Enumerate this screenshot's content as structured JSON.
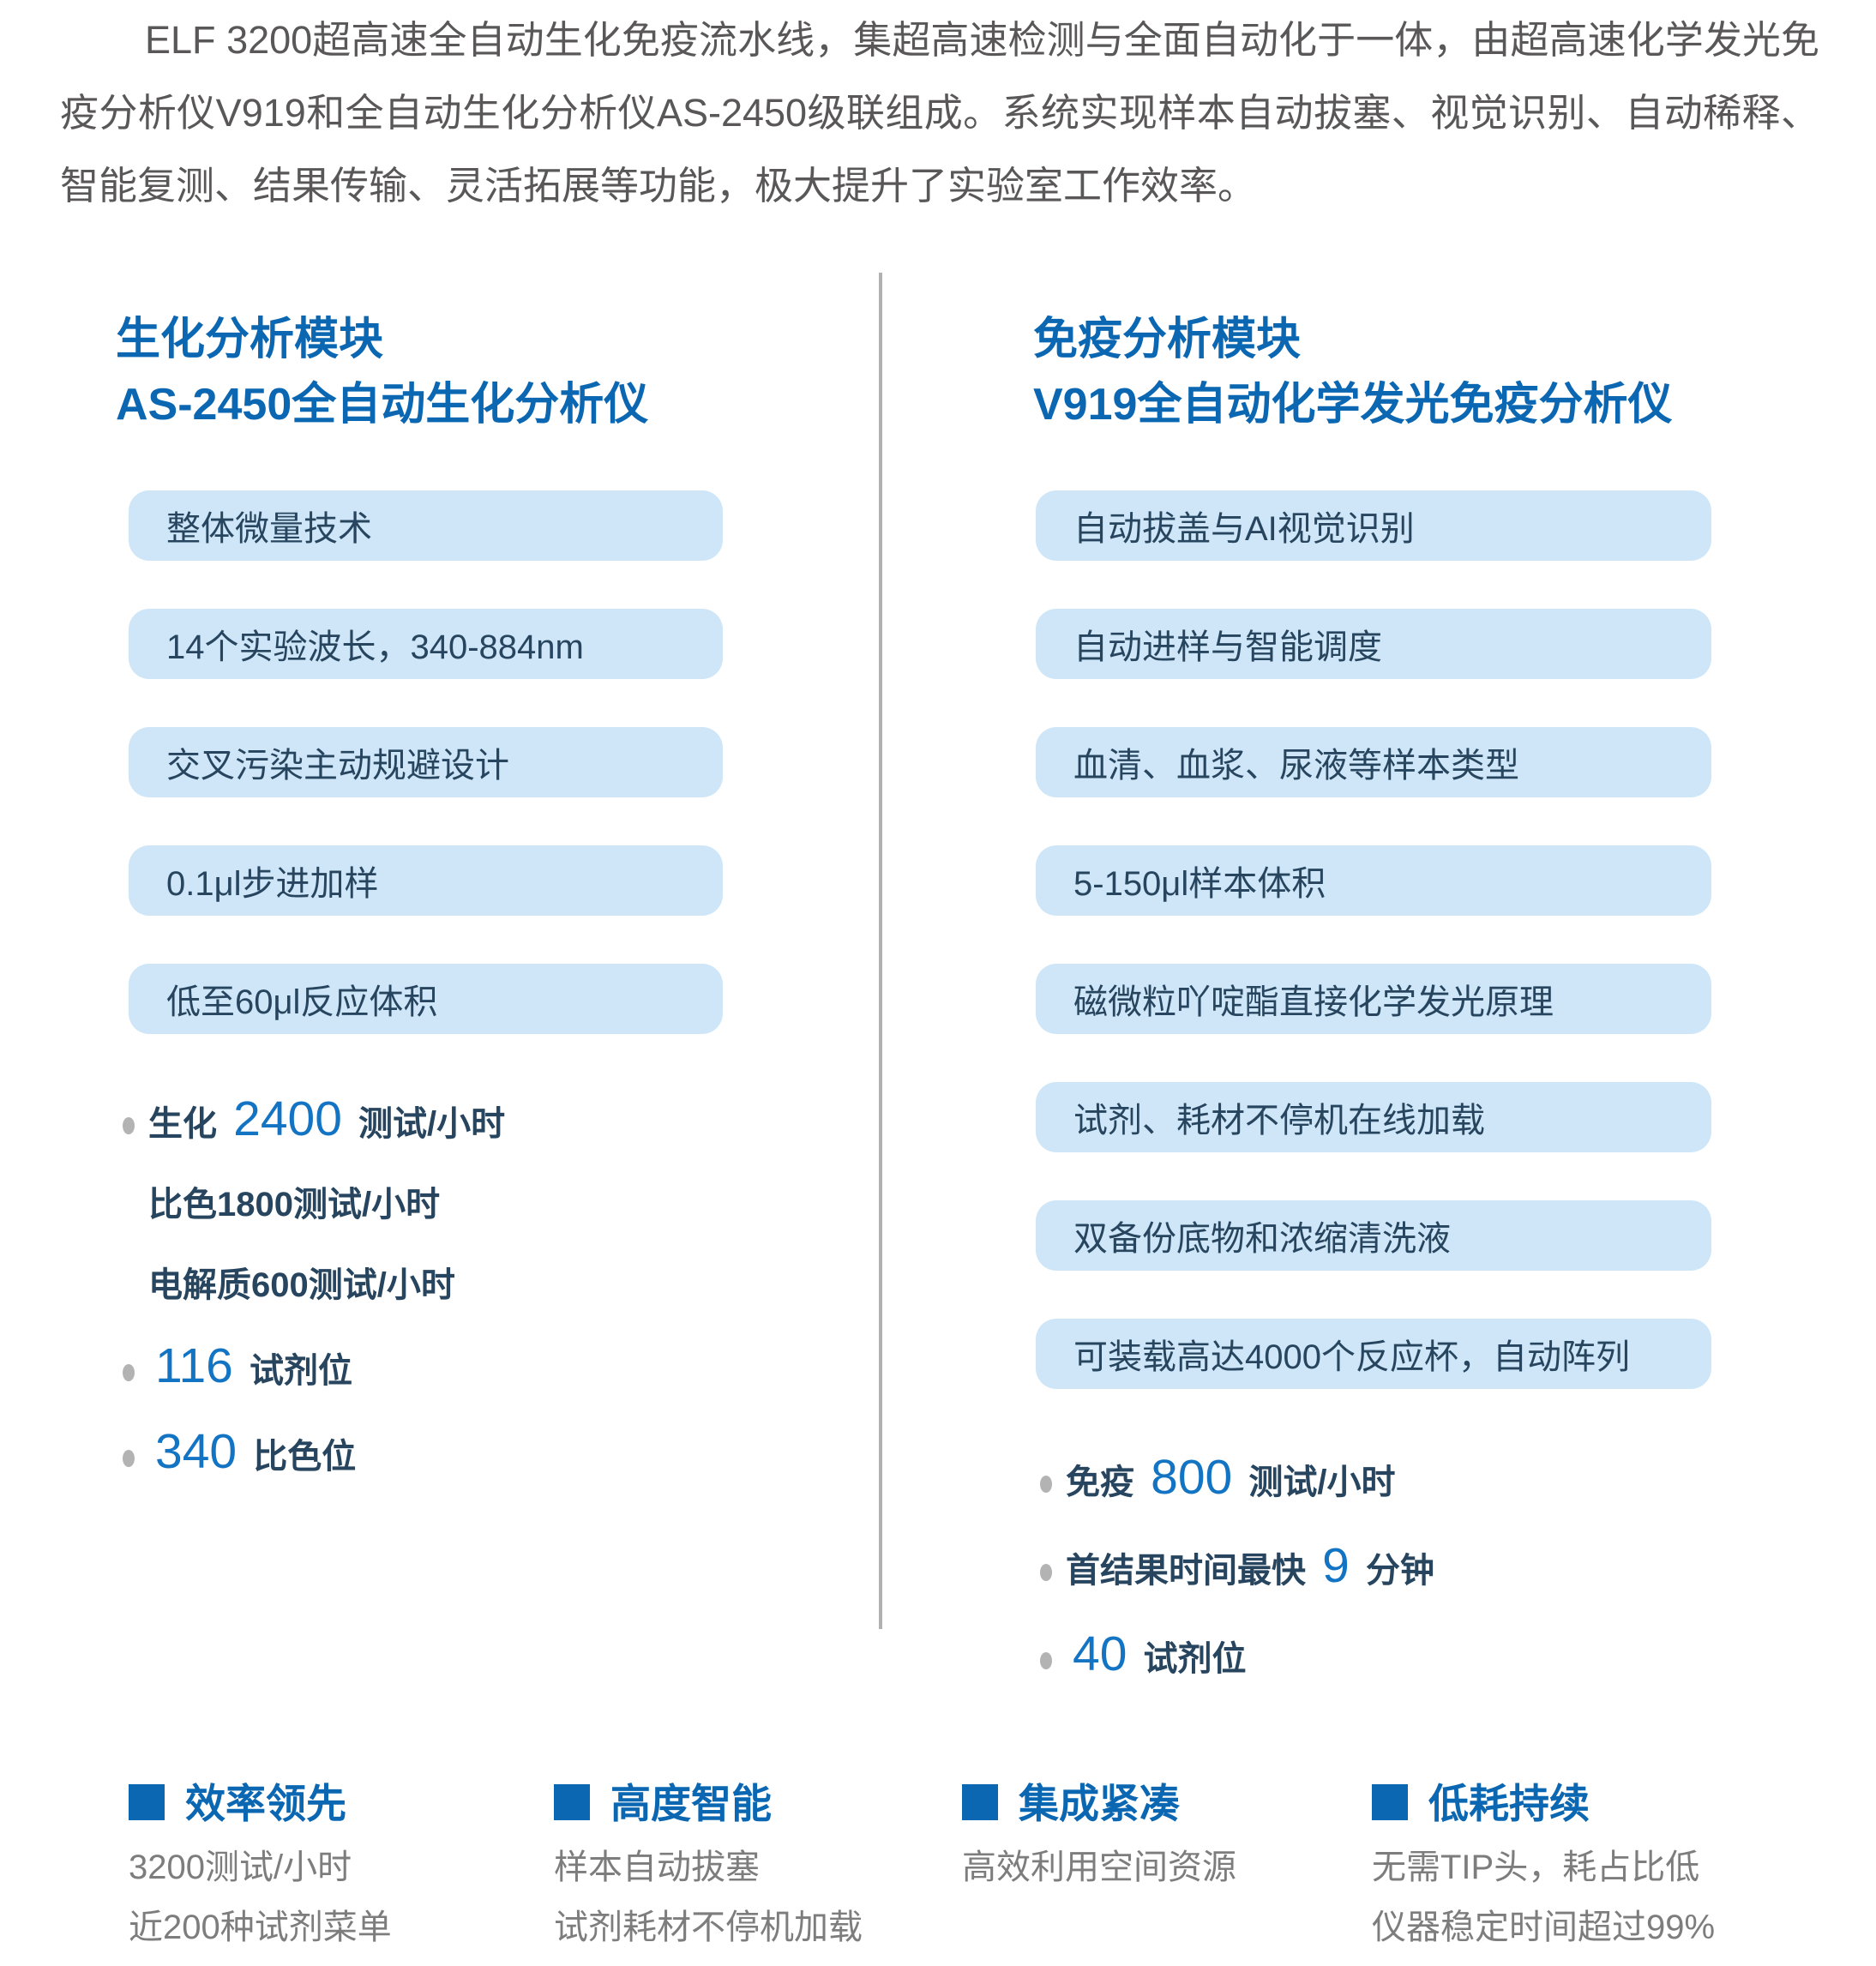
{
  "intro": {
    "text": "ELF 3200超高速全自动生化免疫流水线，集超高速检测与全面自动化于一体，由超高速化学发光免疫分析仪V919和全自动生化分析仪AS-2450级联组成。系统实现样本自动拔塞、视觉识别、自动稀释、智能复测、结果传输、灵活拓展等功能，极大提升了实验室工作效率。"
  },
  "left_module": {
    "title_line1": "生化分析模块",
    "title_line2": "AS-2450全自动生化分析仪",
    "features": [
      "整体微量技术",
      "14个实验波长，340-884nm",
      "交叉污染主动规避设计",
      "0.1μl步进加样",
      "低至60μl反应体积"
    ],
    "stats": [
      {
        "bullet": true,
        "prefix": "生化 ",
        "number": "2400",
        "suffix": " 测试/小时"
      },
      {
        "bullet": false,
        "prefix": "比色1800测试/小时",
        "number": "",
        "suffix": ""
      },
      {
        "bullet": false,
        "prefix": "电解质600测试/小时",
        "number": "",
        "suffix": ""
      },
      {
        "bullet": true,
        "prefix": "",
        "number": "116",
        "suffix": " 试剂位"
      },
      {
        "bullet": true,
        "prefix": "",
        "number": "340",
        "suffix": " 比色位"
      }
    ]
  },
  "right_module": {
    "title_line1": "免疫分析模块",
    "title_line2": "V919全自动化学发光免疫分析仪",
    "features": [
      "自动拔盖与AI视觉识别",
      "自动进样与智能调度",
      "血清、血浆、尿液等样本类型",
      "5-150μl样本体积",
      "磁微粒吖啶酯直接化学发光原理",
      "试剂、耗材不停机在线加载",
      "双备份底物和浓缩清洗液",
      "可装载高达4000个反应杯，自动阵列"
    ],
    "stats": [
      {
        "bullet": true,
        "prefix": "免疫 ",
        "number": "800",
        "suffix": " 测试/小时"
      },
      {
        "bullet": true,
        "prefix": "首结果时间最快 ",
        "number": "9",
        "suffix": " 分钟"
      },
      {
        "bullet": true,
        "prefix": "",
        "number": "40",
        "suffix": " 试剂位"
      }
    ]
  },
  "highlights": [
    {
      "title": "效率领先",
      "lines": [
        "3200测试/小时",
        "近200种试剂菜单"
      ]
    },
    {
      "title": "高度智能",
      "lines": [
        "样本自动拔塞",
        "试剂耗材不停机加载"
      ]
    },
    {
      "title": "集成紧凑",
      "lines": [
        "高效利用空间资源"
      ]
    },
    {
      "title": "低耗持续",
      "lines": [
        "无需TIP头，耗占比低",
        "仪器稳定时间超过99%"
      ]
    }
  ],
  "colors": {
    "heading_blue": "#0b67b2",
    "number_blue": "#1474c4",
    "pill_background": "#cee6f7",
    "pill_text": "#27455f",
    "intro_text": "#595757",
    "secondary_text": "#7d7d7d",
    "divider_gray": "#b1b1b1",
    "bullet_dot_gray": "#b3b3b3"
  }
}
